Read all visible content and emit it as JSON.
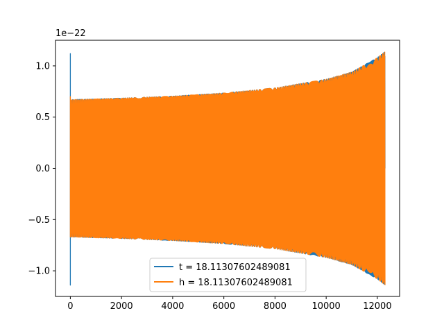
{
  "chart_data": {
    "type": "line",
    "title": "",
    "xlabel": "",
    "ylabel": "",
    "y_offset_label": "1e−22",
    "xlim": [
      -580,
      12870
    ],
    "ylim": [
      -1.25,
      1.25
    ],
    "xticks": [
      0,
      2000,
      4000,
      6000,
      8000,
      10000,
      12000
    ],
    "xtick_labels": [
      "0",
      "2000",
      "4000",
      "6000",
      "8000",
      "10000",
      "12000"
    ],
    "yticks": [
      -1.0,
      -0.5,
      0.0,
      0.5,
      1.0
    ],
    "ytick_labels": [
      "−1.0",
      "−0.5",
      "0.0",
      "0.5",
      "1.0"
    ],
    "grid": false,
    "legend_position": "lower center",
    "series": [
      {
        "name": "t = 18.11307602489081",
        "color": "#1f77b4",
        "x_range": [
          0,
          12300
        ],
        "initial_spike": {
          "x": 0,
          "ymax": 1.12,
          "ymin": -1.14
        },
        "envelope": [
          {
            "x": 0,
            "amp": 0.67
          },
          {
            "x": 2000,
            "amp": 0.685
          },
          {
            "x": 4000,
            "amp": 0.705
          },
          {
            "x": 6000,
            "amp": 0.735
          },
          {
            "x": 8000,
            "amp": 0.785
          },
          {
            "x": 10000,
            "amp": 0.87
          },
          {
            "x": 11000,
            "amp": 0.94
          },
          {
            "x": 12000,
            "amp": 1.08
          },
          {
            "x": 12300,
            "amp": 1.14
          }
        ]
      },
      {
        "name": "h = 18.11307602489081",
        "color": "#ff7f0e",
        "x_range": [
          0,
          12300
        ],
        "initial_spike": {
          "x": 0,
          "ymax": 0.7,
          "ymin": -0.67
        },
        "envelope": [
          {
            "x": 0,
            "amp": 0.67
          },
          {
            "x": 2000,
            "amp": 0.685
          },
          {
            "x": 4000,
            "amp": 0.705
          },
          {
            "x": 6000,
            "amp": 0.735
          },
          {
            "x": 8000,
            "amp": 0.785
          },
          {
            "x": 10000,
            "amp": 0.87
          },
          {
            "x": 11000,
            "amp": 0.94
          },
          {
            "x": 12000,
            "amp": 1.08
          },
          {
            "x": 12300,
            "amp": 1.14
          }
        ]
      }
    ]
  }
}
